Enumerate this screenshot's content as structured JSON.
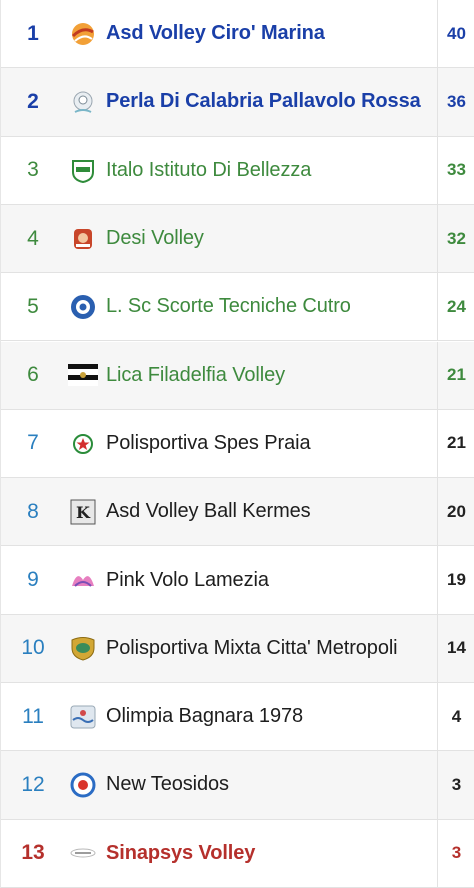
{
  "standings": [
    {
      "rank": "1",
      "team": "Asd Volley Ciro' Marina",
      "points": "40",
      "style": "c-blue bold",
      "icon": "volleyball-flame-logo-icon"
    },
    {
      "rank": "2",
      "team": "Perla Di Calabria Pallavolo Rossa",
      "points": "36",
      "style": "c-blue bold",
      "icon": "pearl-shell-logo-icon"
    },
    {
      "rank": "3",
      "team": "Italo Istituto Di Bellezza",
      "points": "33",
      "style": "c-green",
      "icon": "green-shield-logo-icon"
    },
    {
      "rank": "4",
      "team": "Desi Volley",
      "points": "32",
      "style": "c-green",
      "icon": "red-badge-logo-icon"
    },
    {
      "rank": "5",
      "team": "L. Sc Scorte Tecniche Cutro",
      "points": "24",
      "style": "c-green",
      "icon": "blue-crest-logo-icon"
    },
    {
      "rank": "6",
      "team": "Lica Filadelfia Volley",
      "points": "21",
      "style": "c-green",
      "icon": "striped-flag-logo-icon"
    },
    {
      "rank": "7",
      "team": "Polisportiva Spes Praia",
      "points": "21",
      "style": "c-teal",
      "icon": "star-crest-logo-icon"
    },
    {
      "rank": "8",
      "team": "Asd Volley Ball Kermes",
      "points": "20",
      "style": "c-teal",
      "icon": "k-square-logo-icon"
    },
    {
      "rank": "9",
      "team": "Pink Volo Lamezia",
      "points": "19",
      "style": "c-teal",
      "icon": "pink-wings-logo-icon"
    },
    {
      "rank": "10",
      "team": "Polisportiva Mixta Citta' Metropoli",
      "points": "14",
      "style": "c-teal",
      "icon": "gold-shield-logo-icon"
    },
    {
      "rank": "11",
      "team": "Olimpia Bagnara 1978",
      "points": "4",
      "style": "c-teal",
      "icon": "wave-badge-logo-icon"
    },
    {
      "rank": "12",
      "team": "New Teosidos",
      "points": "3",
      "style": "c-teal",
      "icon": "blue-ring-logo-icon"
    },
    {
      "rank": "13",
      "team": "Sinapsys Volley",
      "points": "3",
      "style": "c-red bold",
      "icon": "small-wordmark-logo-icon"
    }
  ]
}
